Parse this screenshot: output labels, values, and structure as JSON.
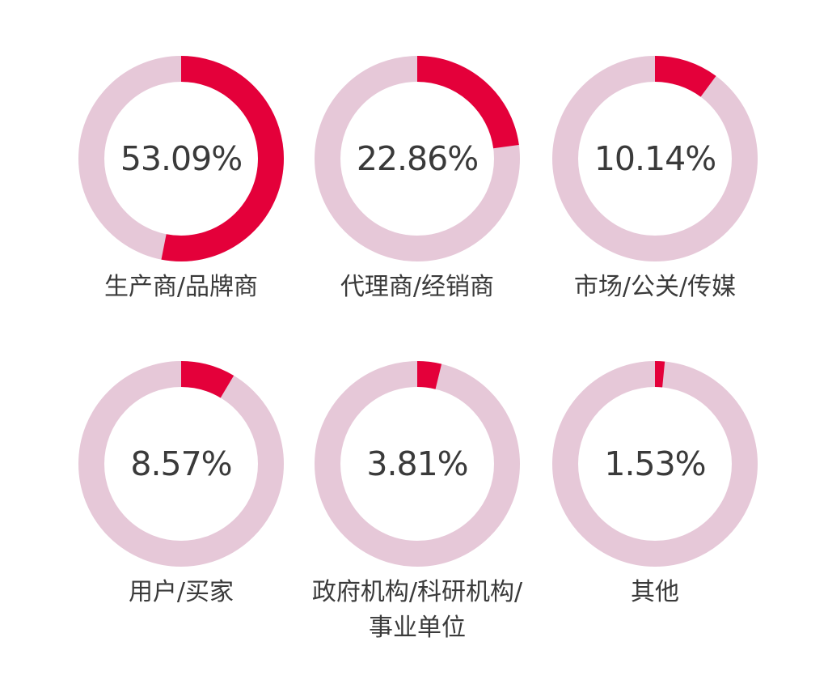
{
  "colors": {
    "highlight": "#e4003a",
    "track": "#e6c8d8",
    "text": "#3a3a3a"
  },
  "chart_data": {
    "type": "donut",
    "items": [
      {
        "label": "生产商/品牌商",
        "value": 53.09,
        "display": "53.09%"
      },
      {
        "label": "代理商/经销商",
        "value": 22.86,
        "display": "22.86%"
      },
      {
        "label": "市场/公关/传媒",
        "value": 10.14,
        "display": "10.14%"
      },
      {
        "label": "用户/买家",
        "value": 8.57,
        "display": "8.57%"
      },
      {
        "label": "政府机构/科研机构/\n事业单位",
        "value": 3.81,
        "display": "3.81%"
      },
      {
        "label": "其他",
        "value": 1.53,
        "display": "1.53%"
      }
    ]
  }
}
